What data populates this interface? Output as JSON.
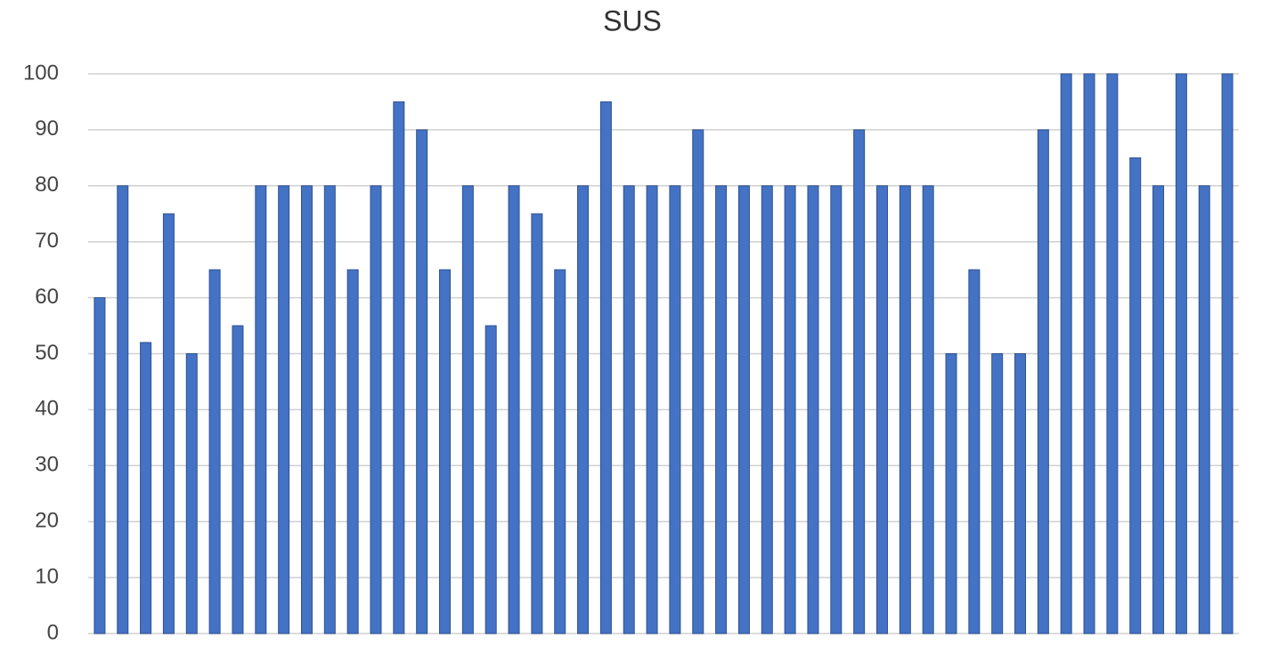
{
  "chart_data": {
    "type": "bar",
    "title": "SUS",
    "categories": [
      null,
      null,
      null,
      null,
      null,
      null,
      null,
      null,
      null,
      null,
      null,
      null,
      null,
      null,
      null,
      null,
      null,
      null,
      null,
      null,
      null,
      null,
      null,
      null,
      null,
      null,
      null,
      null,
      null,
      null,
      null,
      null,
      null,
      null,
      null,
      null,
      null,
      null,
      null,
      null,
      null,
      null,
      null,
      null,
      null,
      null,
      null,
      null,
      null,
      null
    ],
    "values": [
      60,
      80,
      52,
      75,
      50,
      65,
      55,
      80,
      80,
      80,
      80,
      65,
      80,
      95,
      90,
      65,
      80,
      55,
      80,
      75,
      65,
      80,
      95,
      80,
      80,
      80,
      90,
      80,
      80,
      80,
      80,
      80,
      80,
      90,
      80,
      80,
      80,
      50,
      65,
      50,
      50,
      90,
      100,
      100,
      100,
      85,
      80,
      100,
      80,
      100
    ],
    "color": "#4472c4",
    "ylim": [
      0,
      100
    ],
    "yticks": [
      0,
      10,
      20,
      30,
      40,
      50,
      60,
      70,
      80,
      90,
      100
    ],
    "grid": true
  }
}
